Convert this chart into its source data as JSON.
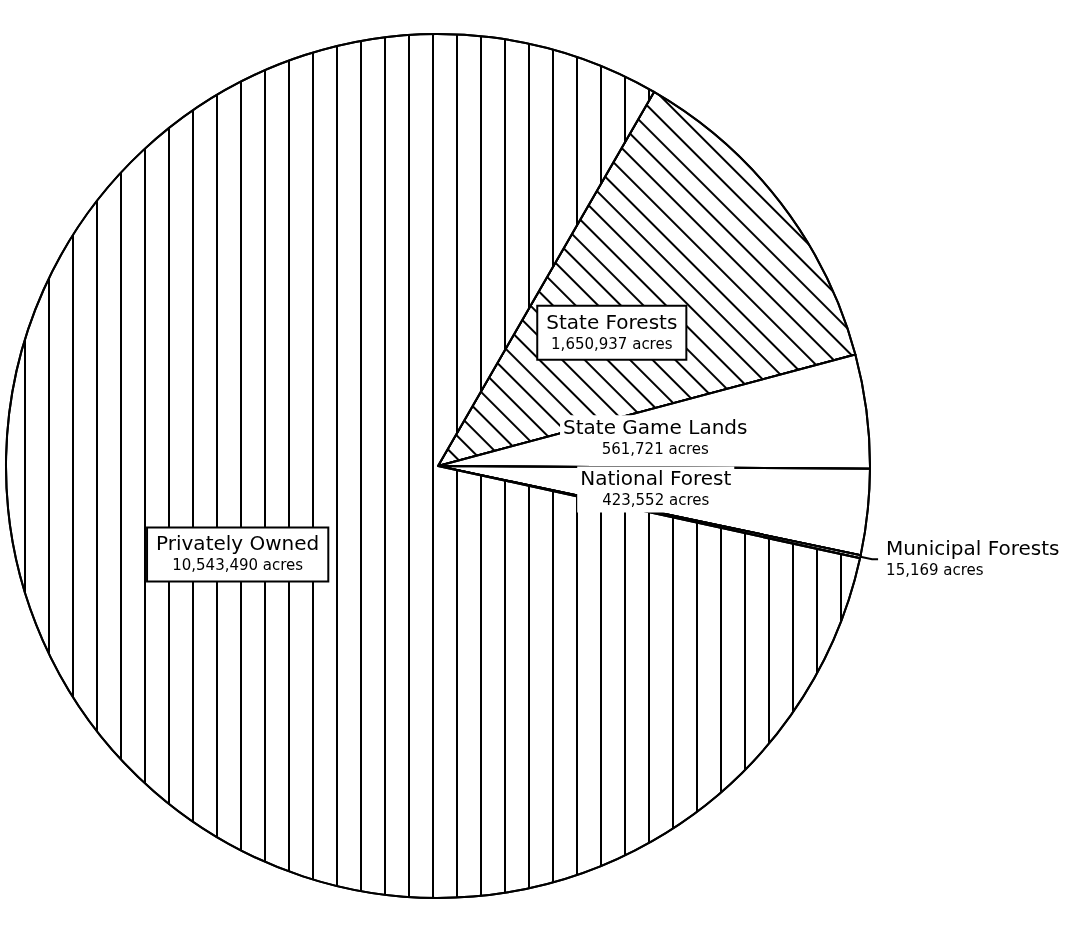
{
  "chart_data": {
    "type": "pie",
    "categories": [
      "State Forests",
      "State Game Lands",
      "National Forest",
      "Municipal Forests",
      "Privately Owned"
    ],
    "values": [
      1650937,
      561721,
      423552,
      15169,
      10543490
    ],
    "value_labels": [
      "1,650,937 acres",
      "561,721 acres",
      "423,552 acres",
      "15,169 acres",
      "10,543,490 acres"
    ],
    "colors": [
      "#ffffff",
      "#ffffff",
      "#ffffff",
      "#ffffff",
      "#ffffff"
    ],
    "legend": false
  }
}
